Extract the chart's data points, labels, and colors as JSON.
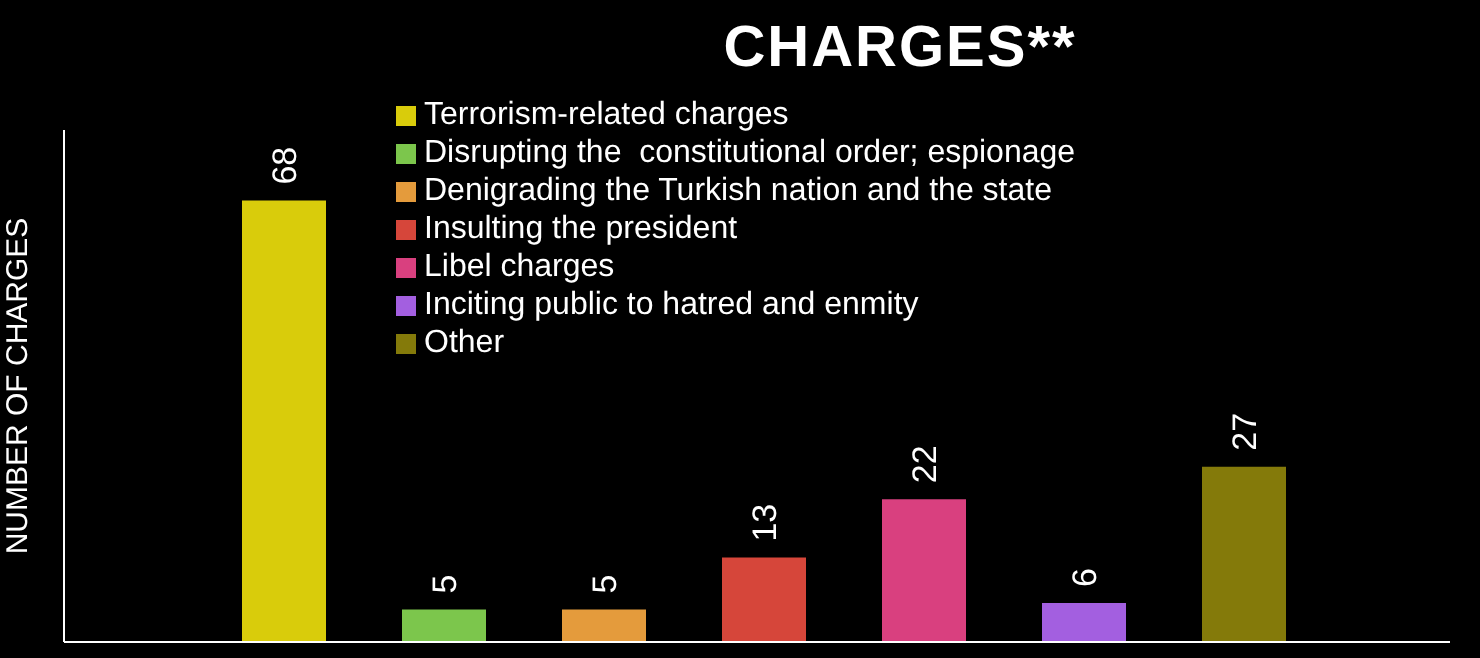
{
  "chart_data": {
    "type": "bar",
    "title": "CHARGES**",
    "ylabel": "NUMBER OF CHARGES",
    "categories": [
      null,
      null,
      null,
      null,
      null,
      null,
      null
    ],
    "series": [
      {
        "name": "Terrorism-related charges",
        "color": "#d9cc0b",
        "values": [
          68,
          null,
          null,
          null,
          null,
          null,
          null
        ]
      },
      {
        "name": "Disrupting the  constitutional order; espionage",
        "color": "#7cc64c",
        "values": [
          null,
          5,
          null,
          null,
          null,
          null,
          null
        ]
      },
      {
        "name": "Denigrading the Turkish nation and the state",
        "color": "#e49b3c",
        "values": [
          null,
          null,
          5,
          null,
          null,
          null,
          null
        ]
      },
      {
        "name": "Insulting the president",
        "color": "#d6463a",
        "values": [
          null,
          null,
          null,
          13,
          null,
          null,
          null
        ]
      },
      {
        "name": "Libel charges",
        "color": "#d9407f",
        "values": [
          null,
          null,
          null,
          null,
          22,
          null,
          null
        ]
      },
      {
        "name": "Inciting public to hatred and enmity",
        "color": "#a35fe0",
        "values": [
          null,
          null,
          null,
          null,
          null,
          6,
          null
        ]
      },
      {
        "name": "Other",
        "color": "#847a0a",
        "values": [
          null,
          null,
          null,
          null,
          null,
          null,
          27
        ]
      }
    ],
    "stacked": true,
    "data_labels": true,
    "legend": "top",
    "tick_labels": false
  }
}
